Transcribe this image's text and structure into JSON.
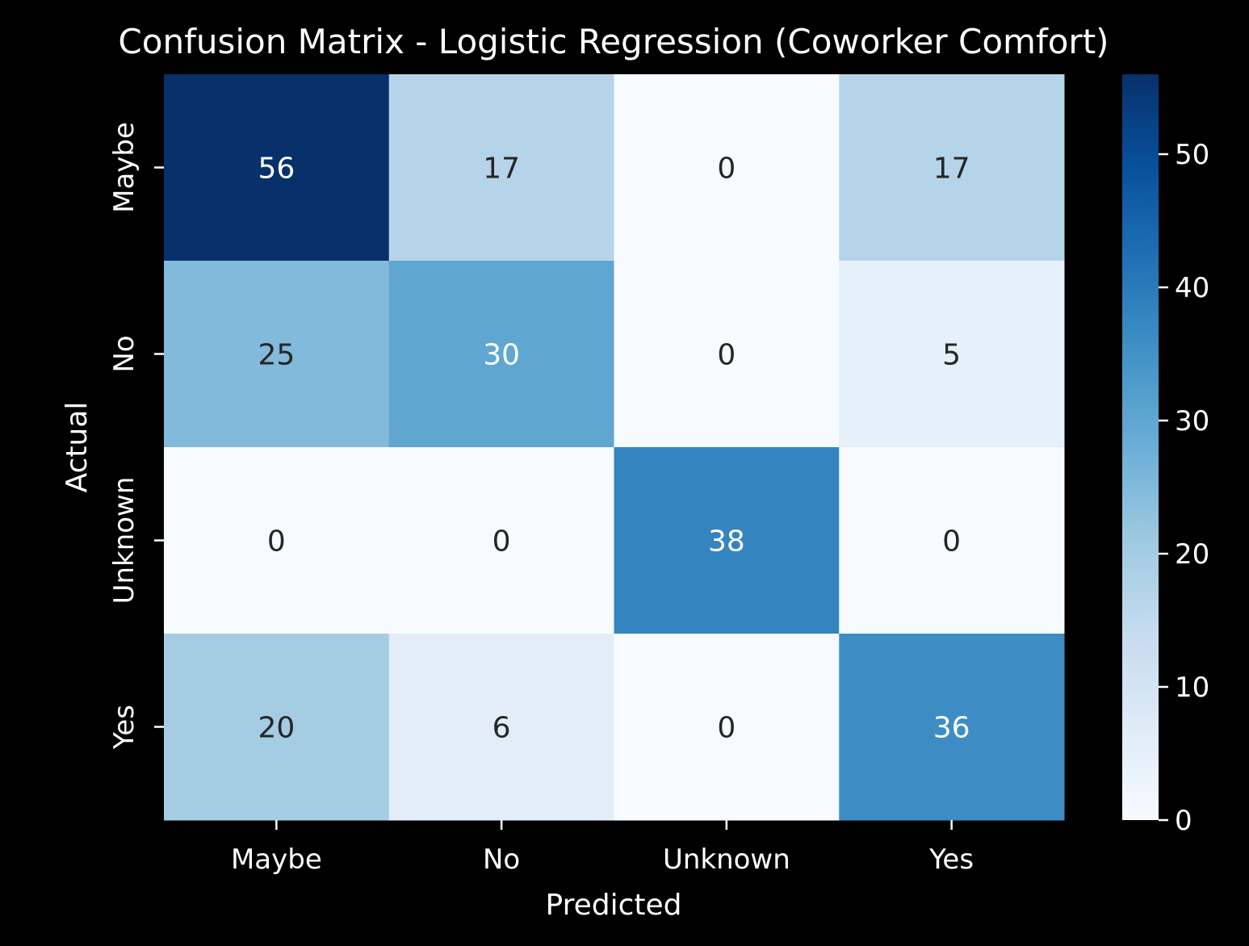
{
  "chart_data": {
    "type": "heatmap",
    "title": "Confusion Matrix - Logistic Regression (Coworker Comfort)",
    "xlabel": "Predicted",
    "ylabel": "Actual",
    "x_categories": [
      "Maybe",
      "No",
      "Unknown",
      "Yes"
    ],
    "y_categories": [
      "Maybe",
      "No",
      "Unknown",
      "Yes"
    ],
    "values": [
      [
        56,
        17,
        0,
        17
      ],
      [
        25,
        30,
        0,
        5
      ],
      [
        0,
        0,
        38,
        0
      ],
      [
        20,
        6,
        0,
        36
      ]
    ],
    "colorbar": {
      "range": [
        0,
        56
      ],
      "ticks": [
        0,
        10,
        20,
        30,
        40,
        50
      ],
      "colormap": "Blues"
    },
    "colors": {
      "background": "#000000",
      "text_light": "#ffffff",
      "text_dark": "#262626"
    }
  }
}
